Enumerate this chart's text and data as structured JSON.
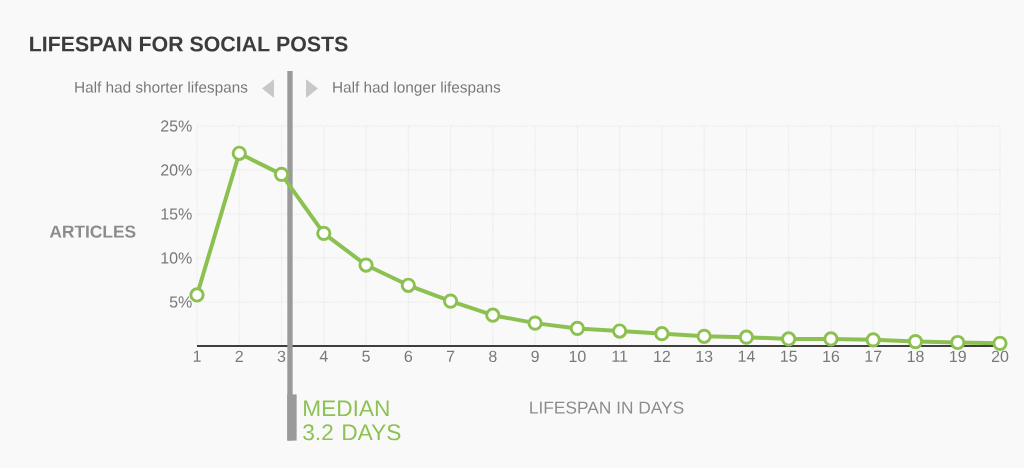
{
  "chart_data": {
    "type": "line",
    "title": "LIFESPAN FOR SOCIAL POSTS",
    "xlabel": "LIFESPAN IN DAYS",
    "ylabel": "ARTICLES",
    "x": [
      1,
      2,
      3,
      4,
      5,
      6,
      7,
      8,
      9,
      10,
      11,
      12,
      13,
      14,
      15,
      16,
      17,
      18,
      19,
      20
    ],
    "series": [
      {
        "color": "#8cc152",
        "values": [
          5.8,
          21.9,
          19.5,
          12.8,
          9.2,
          6.9,
          5.1,
          3.5,
          2.6,
          2.0,
          1.7,
          1.4,
          1.1,
          1.0,
          0.8,
          0.8,
          0.7,
          0.5,
          0.4,
          0.3
        ]
      }
    ],
    "xlim": [
      1,
      20
    ],
    "xticks": [
      1,
      2,
      3,
      4,
      5,
      6,
      7,
      8,
      9,
      10,
      11,
      12,
      13,
      14,
      15,
      16,
      17,
      18,
      19,
      20
    ],
    "ylim": [
      0,
      25
    ],
    "yticks": [
      {
        "value": 5,
        "label": "5%"
      },
      {
        "value": 10,
        "label": "10%"
      },
      {
        "value": 15,
        "label": "15%"
      },
      {
        "value": 20,
        "label": "20%"
      },
      {
        "value": 25,
        "label": "25%"
      }
    ],
    "grid": true,
    "marker": "circle",
    "line_style": "solid",
    "ref_lines": [
      {
        "axis": "x",
        "value": 3.2,
        "label": "MEDIAN 3.2 DAYS",
        "color": "#9a9a9a"
      }
    ],
    "annotations": [
      "Half had shorter lifespans",
      "Half had longer lifespans"
    ]
  }
}
